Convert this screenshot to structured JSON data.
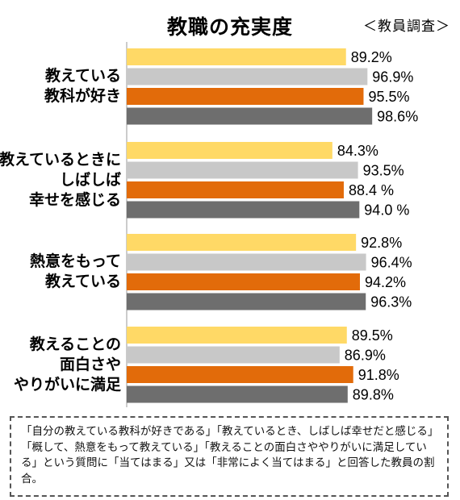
{
  "title": "教職の充実度",
  "source": "＜教員調査＞",
  "chart_data": {
    "type": "bar",
    "orientation": "horizontal",
    "categories": [
      "教えている\n教科が好き",
      "教えているときに\nしばしば\n幸せを感じる",
      "熱意をもって\n教えている",
      "教えることの\n面白さや\nやりがいに満足"
    ],
    "series": [
      {
        "color": "#FFD966",
        "values": [
          89.2,
          84.3,
          92.8,
          89.5
        ]
      },
      {
        "color": "#C8C8C8",
        "values": [
          96.9,
          93.5,
          96.4,
          86.9
        ]
      },
      {
        "color": "#E26B0A",
        "values": [
          95.5,
          88.4,
          94.2,
          91.8
        ]
      },
      {
        "color": "#6E6E6E",
        "values": [
          98.6,
          94.0,
          96.3,
          89.8
        ]
      }
    ],
    "value_labels": [
      [
        "89.2%",
        "96.9%",
        "95.5%",
        "98.6%"
      ],
      [
        "84.3%",
        "93.5%",
        "88.4 %",
        "94.0 %"
      ],
      [
        "92.8%",
        "96.4%",
        "94.2%",
        "96.3%"
      ],
      [
        "89.5%",
        "86.9%",
        "91.8%",
        "89.8%"
      ]
    ],
    "xlim": [
      0,
      100
    ],
    "grid": false,
    "legend": false
  },
  "note": "「自分の教えている教科が好きである」「教えているとき、しばしば幸せだと感じる」「概して、熱意をもって教えている」「教えることの面白さややりがいに満足している」という質問に「当てはまる」又は「非常によく当てはまる」と回答した教員の割合。"
}
